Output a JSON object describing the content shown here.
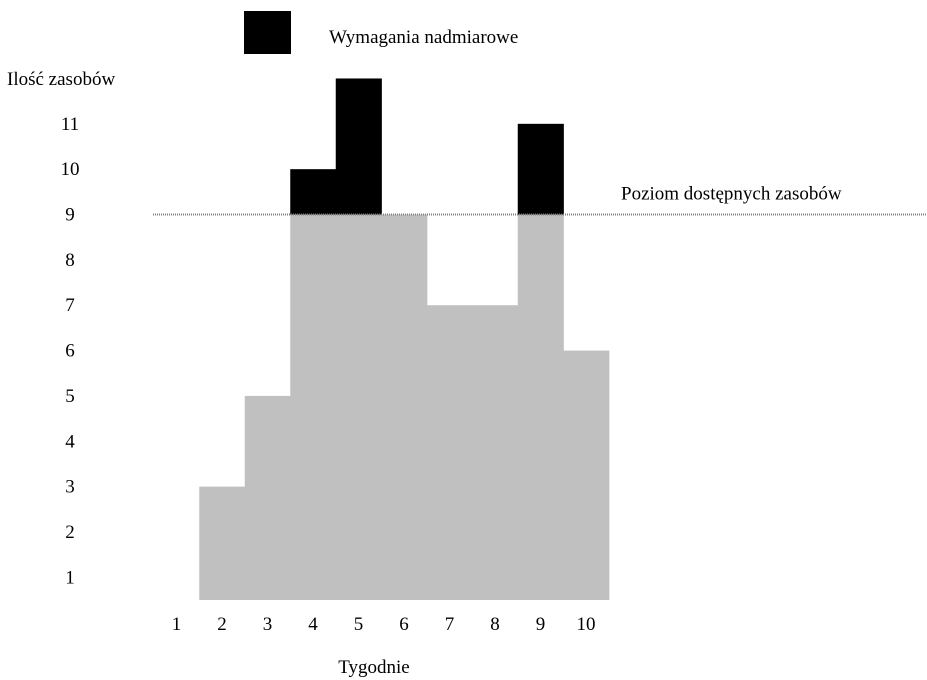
{
  "chart_data": {
    "type": "bar",
    "ylabel": "Ilość zasobów",
    "xlabel": "Tygodnie",
    "x_ticks": [
      "1",
      "2",
      "3",
      "4",
      "5",
      "6",
      "7",
      "8",
      "9",
      "10"
    ],
    "y_ticks": [
      "1",
      "2",
      "3",
      "4",
      "5",
      "6",
      "7",
      "8",
      "9",
      "10",
      "11"
    ],
    "ylim": [
      0,
      12
    ],
    "available_level": 8.5,
    "available_level_label": "Poziom dostępnych zasobów",
    "legend": {
      "label": "Wymagania nadmiarowe",
      "position": "top"
    },
    "weeks": [
      1,
      2,
      3,
      4,
      5,
      6,
      7,
      8,
      9,
      10
    ],
    "demand": [
      0,
      2.5,
      4.5,
      9.5,
      11.5,
      8.5,
      6.5,
      6.5,
      10.5,
      5.5
    ],
    "series": [
      {
        "name": "Wymagania nadmiarowe",
        "values": [
          0,
          0,
          0,
          1,
          3,
          0,
          0,
          0,
          2,
          0
        ]
      }
    ],
    "colors": {
      "demand": "#c0c0c0",
      "excess": "#000000",
      "line": "#808080"
    },
    "grid": false
  }
}
